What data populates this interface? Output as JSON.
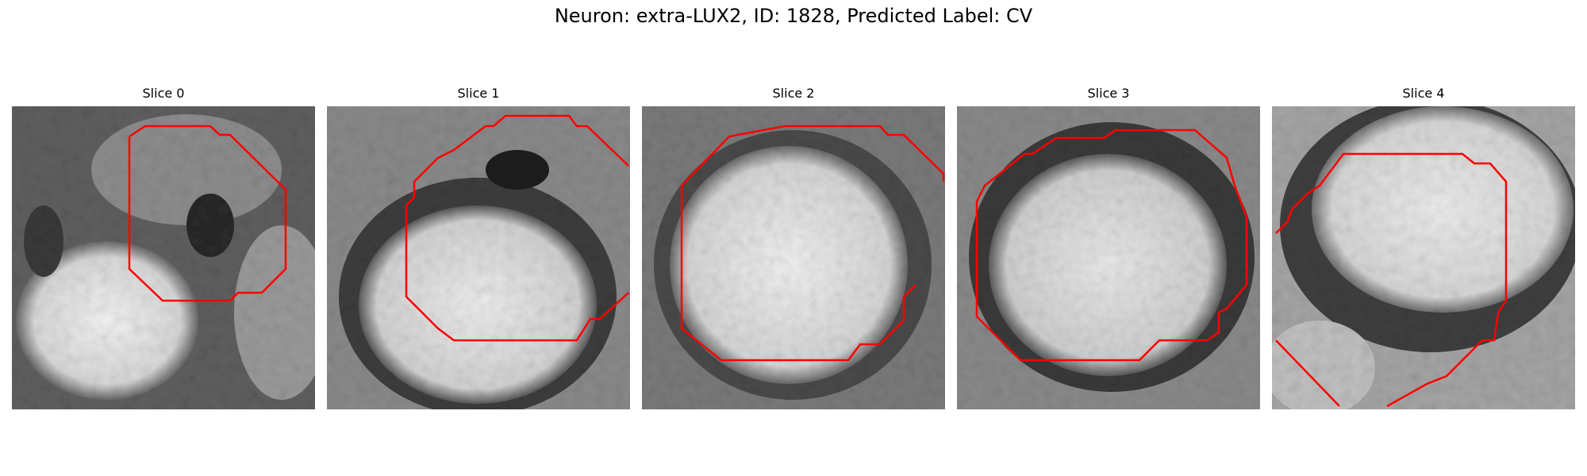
{
  "figure": {
    "suptitle": "Neuron: extra-LUX2, ID: 1828, Predicted Label: CV",
    "contour_color": "#ff0000",
    "colormap": "gray",
    "panels": [
      {
        "title": "Slice 0"
      },
      {
        "title": "Slice 1"
      },
      {
        "title": "Slice 2"
      },
      {
        "title": "Slice 3"
      },
      {
        "title": "Slice 4"
      }
    ]
  }
}
